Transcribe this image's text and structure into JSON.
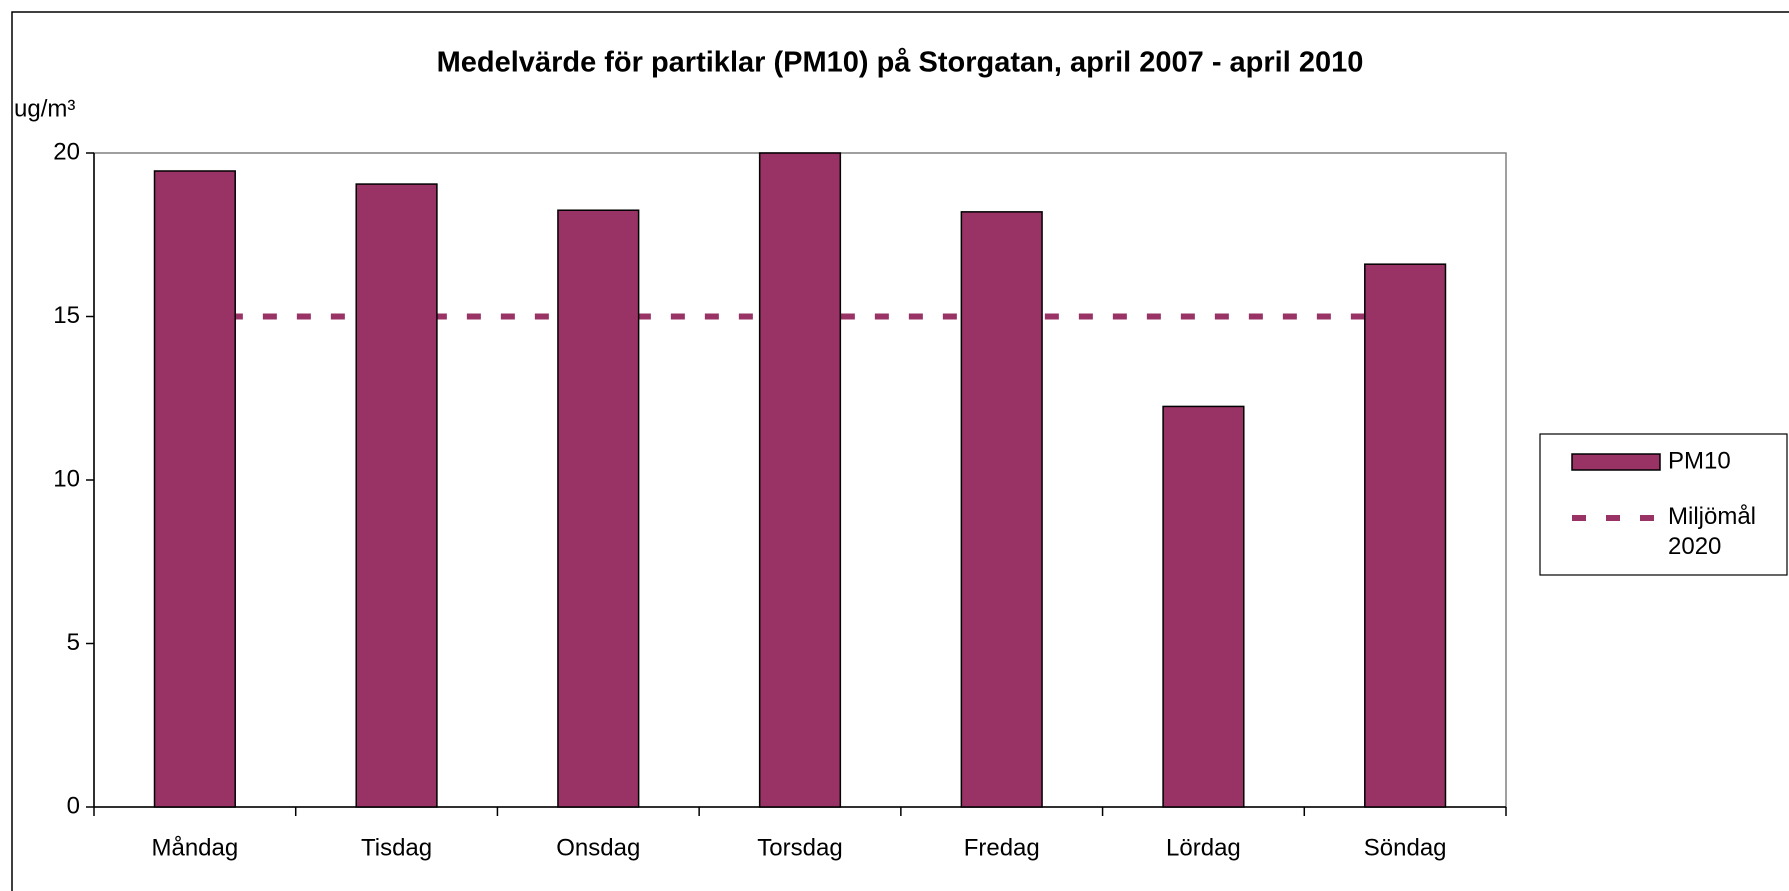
{
  "chart_data": {
    "type": "bar",
    "title": "Medelvärde för partiklar (PM10) på Storgatan, april 2007 - april 2010",
    "y_label": "ug/m³",
    "categories": [
      "Måndag",
      "Tisdag",
      "Onsdag",
      "Torsdag",
      "Fredag",
      "Lördag",
      "Söndag"
    ],
    "series": [
      {
        "name": "PM10",
        "type": "bar",
        "color": "#993366",
        "values": [
          19.45,
          19.05,
          18.25,
          20.0,
          18.2,
          12.25,
          16.6
        ]
      },
      {
        "name": "Miljömål 2020",
        "type": "line",
        "color": "#993366",
        "values": [
          15,
          15,
          15,
          15,
          15,
          15,
          15
        ]
      }
    ],
    "ylim": [
      0,
      20
    ],
    "yticks": [
      0,
      5,
      10,
      15,
      20
    ],
    "legend": "right"
  }
}
